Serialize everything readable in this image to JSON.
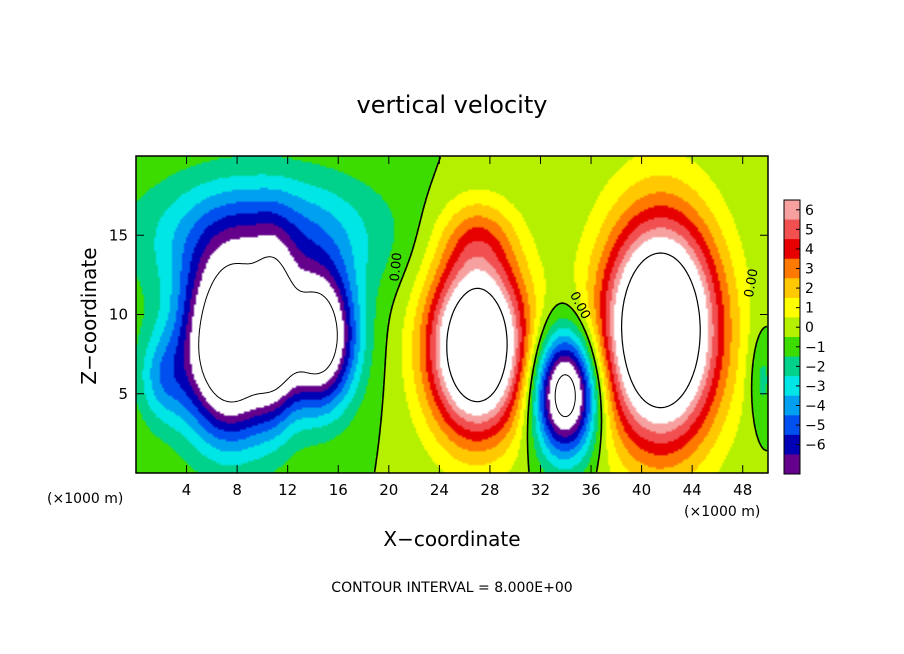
{
  "chart_data": {
    "type": "heatmap",
    "title": "vertical velocity",
    "xlabel": "X−coordinate",
    "ylabel": "Z−coordinate",
    "x_units": "(×1000 m)",
    "z_units": "(×1000 m)",
    "xlim": [
      0,
      50
    ],
    "ylim": [
      0,
      20
    ],
    "x_ticks": [
      4,
      8,
      12,
      16,
      20,
      24,
      28,
      32,
      36,
      40,
      44,
      48
    ],
    "y_ticks": [
      5,
      10,
      15
    ],
    "colorbar": {
      "levels": [
        6,
        5,
        4,
        3,
        2,
        1,
        0,
        -1,
        -2,
        -3,
        -4,
        -5,
        -6
      ],
      "labels": [
        "6",
        "5",
        "4",
        "3",
        "2",
        "1",
        "0",
        "−1",
        "−2",
        "−3",
        "−4",
        "−5",
        "−6"
      ],
      "colors": [
        "#f7a0a0",
        "#f25050",
        "#e60000",
        "#ff7800",
        "#ffc800",
        "#ffff00",
        "#b4f000",
        "#3cdc00",
        "#00d28c",
        "#00e6e6",
        "#00a0f0",
        "#0050f0",
        "#0000b4",
        "#64008c"
      ]
    },
    "contour_labels": [
      "0.00",
      "0.00",
      "0.00"
    ],
    "contour_interval_text": "CONTOUR INTERVAL = 8.000E+00",
    "cells": [
      {
        "x": 7.5,
        "z": 8,
        "w": -12,
        "sx": 3.8,
        "sz": 5.5
      },
      {
        "x": 14.5,
        "z": 8.5,
        "w": -10,
        "sx": 2.8,
        "sz": 4.2
      },
      {
        "x": 11,
        "z": 9,
        "w": -5,
        "sx": 1.6,
        "sz": 5
      },
      {
        "x": 10,
        "z": 15,
        "w": -4,
        "sx": 9,
        "sz": 4
      },
      {
        "x": 2,
        "z": 6,
        "w": -2.5,
        "sx": 2,
        "sz": 3
      },
      {
        "x": 27,
        "z": 8,
        "w": 12,
        "sx": 3.8,
        "sz": 5.5
      },
      {
        "x": 41.5,
        "z": 9,
        "w": 13,
        "sx": 4.5,
        "sz": 7
      },
      {
        "x": 34,
        "z": 5,
        "w": -10,
        "sx": 2.5,
        "sz": 3.8
      },
      {
        "x": 27,
        "z": 15,
        "w": 2,
        "sx": 3,
        "sz": 2.5
      },
      {
        "x": 49.5,
        "z": 6,
        "w": -1.5,
        "sx": 1,
        "sz": 3
      }
    ]
  }
}
